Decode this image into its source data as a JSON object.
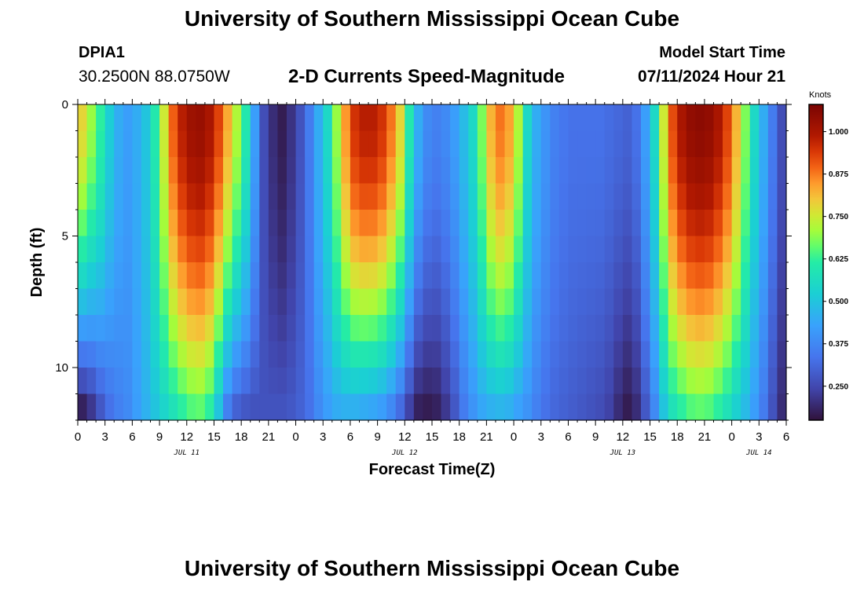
{
  "header": {
    "title": "University of Southern Mississippi Ocean Cube",
    "station_id": "DPIA1",
    "coordinates": "30.2500N  88.0750W",
    "chart_title": "2-D Currents Speed-Magnitude",
    "start_label": "Model Start Time",
    "start_value": "07/11/2024 Hour 21"
  },
  "footer": {
    "title": "University of Southern Mississippi Ocean Cube"
  },
  "chart_data": {
    "type": "heatmap",
    "title": "2-D Currents Speed-Magnitude",
    "xlabel": "Forecast Time(Z)",
    "ylabel": "Depth (ft)",
    "x_range_hours": [
      0,
      78
    ],
    "y_range": [
      0,
      12
    ],
    "x_tick_labels": [
      "0",
      "3",
      "6",
      "9",
      "12",
      "15",
      "18",
      "21",
      "0",
      "3",
      "6",
      "9",
      "12",
      "15",
      "18",
      "21",
      "0",
      "3",
      "6",
      "9",
      "12",
      "15",
      "18",
      "21",
      "0",
      "3",
      "6"
    ],
    "y_ticks": [
      0,
      5,
      10
    ],
    "y_tick_labels": [
      "0",
      "5",
      "10"
    ],
    "date_labels": [
      {
        "label": "JUL 11",
        "hour": 12
      },
      {
        "label": "JUL 12",
        "hour": 36
      },
      {
        "label": "JUL 13",
        "hour": 60
      },
      {
        "label": "JUL 14",
        "hour": 75
      }
    ],
    "colorbar": {
      "title": "Knots",
      "min": 0.15,
      "max": 1.08,
      "ticks": [
        0.25,
        0.375,
        0.5,
        0.625,
        0.75,
        0.875,
        1.0
      ],
      "tick_labels": [
        "0.250",
        "0.375",
        "0.500",
        "0.625",
        "0.750",
        "0.875",
        "1.000"
      ]
    },
    "n_time_steps": 78,
    "depth_levels": 12,
    "surface_speed_knots": [
      0.78,
      0.7,
      0.62,
      0.52,
      0.45,
      0.42,
      0.45,
      0.5,
      0.6,
      0.75,
      0.9,
      0.98,
      1.02,
      1.03,
      1.0,
      0.93,
      0.83,
      0.72,
      0.6,
      0.42,
      0.26,
      0.2,
      0.17,
      0.21,
      0.27,
      0.35,
      0.45,
      0.55,
      0.7,
      0.85,
      0.95,
      0.98,
      0.98,
      0.95,
      0.88,
      0.78,
      0.6,
      0.45,
      0.38,
      0.36,
      0.38,
      0.42,
      0.48,
      0.55,
      0.68,
      0.82,
      0.88,
      0.84,
      0.72,
      0.55,
      0.45,
      0.4,
      0.36,
      0.34,
      0.33,
      0.33,
      0.33,
      0.33,
      0.32,
      0.31,
      0.3,
      0.33,
      0.42,
      0.55,
      0.75,
      0.92,
      1.0,
      1.04,
      1.05,
      1.04,
      1.0,
      0.93,
      0.82,
      0.68,
      0.55,
      0.45,
      0.35,
      0.26
    ],
    "bottom_speed_knots": [
      0.18,
      0.22,
      0.28,
      0.33,
      0.36,
      0.38,
      0.42,
      0.46,
      0.5,
      0.54,
      0.58,
      0.62,
      0.65,
      0.66,
      0.62,
      0.5,
      0.36,
      0.3,
      0.28,
      0.27,
      0.27,
      0.27,
      0.27,
      0.28,
      0.3,
      0.33,
      0.38,
      0.42,
      0.45,
      0.46,
      0.46,
      0.45,
      0.44,
      0.42,
      0.38,
      0.32,
      0.24,
      0.18,
      0.17,
      0.18,
      0.22,
      0.28,
      0.35,
      0.4,
      0.44,
      0.46,
      0.47,
      0.46,
      0.43,
      0.4,
      0.36,
      0.33,
      0.31,
      0.3,
      0.29,
      0.28,
      0.27,
      0.26,
      0.24,
      0.2,
      0.17,
      0.2,
      0.28,
      0.38,
      0.5,
      0.58,
      0.62,
      0.65,
      0.66,
      0.65,
      0.62,
      0.58,
      0.53,
      0.48,
      0.42,
      0.35,
      0.27,
      0.2
    ]
  }
}
